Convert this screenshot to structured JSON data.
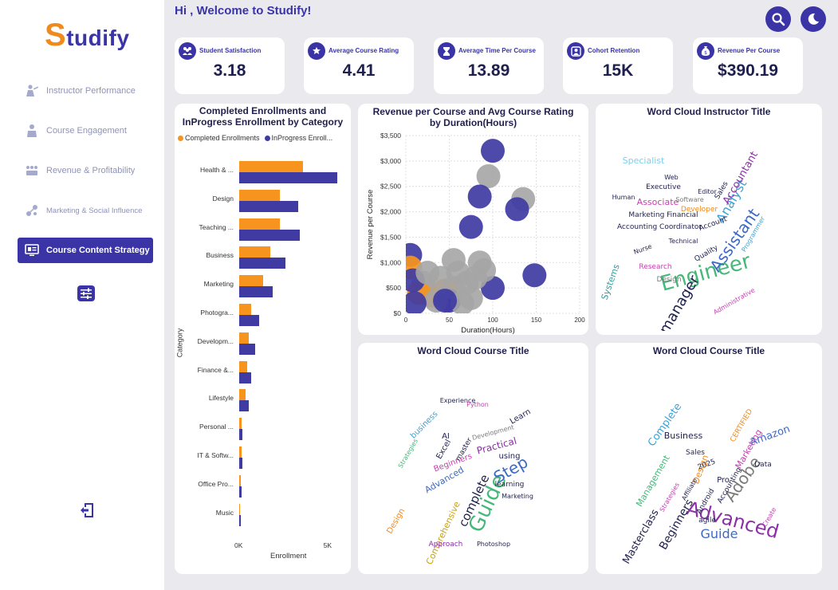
{
  "header": {
    "welcome": "Hi , Welcome to Studify!"
  },
  "logo": {
    "first": "S",
    "rest": "tudify"
  },
  "sidebar": {
    "items": [
      {
        "label": "Instructor Performance",
        "icon": "instructor-icon",
        "active": false
      },
      {
        "label": "Course Engagement",
        "icon": "engagement-icon",
        "active": false
      },
      {
        "label": "Revenue & Profitability",
        "icon": "revenue-icon",
        "active": false
      },
      {
        "label": "Marketing & Social Influence",
        "icon": "marketing-icon",
        "active": false
      },
      {
        "label": "Course Content Strategy",
        "icon": "monitor-icon",
        "active": true
      }
    ]
  },
  "kpis": [
    {
      "label": "Student Satisfaction",
      "value": "3.18",
      "icon": "users-icon"
    },
    {
      "label": "Average Course Rating",
      "value": "4.41",
      "icon": "rating-icon"
    },
    {
      "label": "Average Time Per Course",
      "value": "13.89",
      "icon": "hourglass-icon"
    },
    {
      "label": "Cohort Retention",
      "value": "15K",
      "icon": "cohort-icon"
    },
    {
      "label": "Revenue Per Course",
      "value": "$390.19",
      "icon": "money-bag-icon"
    }
  ],
  "colors": {
    "accent": "#3a34a6",
    "orange": "#f7941d",
    "indigo": "#3f3ba3",
    "grey": "#a5a5a5"
  },
  "chart_data": [
    {
      "type": "bar",
      "title": "Completed Enrollments and InProgress Enrollment by Category",
      "xlabel": "Enrollment",
      "ylabel": "Category",
      "orientation": "horizontal",
      "legend": "top",
      "legend_labels": [
        "Completed Enrollments",
        "InProgress Enroll..."
      ],
      "categories": [
        "Health & ...",
        "Design",
        "Teaching ...",
        "Business",
        "Marketing",
        "Photogra...",
        "Developm...",
        "Finance &...",
        "Lifestyle",
        "Personal ...",
        "IT & Softw...",
        "Office Pro...",
        "Music"
      ],
      "series": [
        {
          "name": "Completed Enrollments",
          "values": [
            3600,
            2300,
            2300,
            1750,
            1350,
            650,
            550,
            450,
            350,
            150,
            130,
            100,
            50
          ]
        },
        {
          "name": "InProgress Enrollments",
          "values": [
            5500,
            3300,
            3400,
            2600,
            1900,
            1100,
            900,
            650,
            550,
            200,
            180,
            150,
            80
          ]
        }
      ],
      "xticks": [
        "0K",
        "5K"
      ],
      "xlim": [
        0,
        6000
      ]
    },
    {
      "type": "scatter",
      "title": "Revenue per Course and Avg Course Rating by Duration(Hours)",
      "xlabel": "Duration(Hours)",
      "ylabel": "Revenue per Course",
      "xlim": [
        0,
        200
      ],
      "ylim": [
        0,
        3500
      ],
      "xticks": [
        "0",
        "50",
        "100",
        "150",
        "200"
      ],
      "yticks": [
        "$0",
        "$500",
        "$1,000",
        "$1,500",
        "$2,000",
        "$2,500",
        "$3,000",
        "$3,500"
      ],
      "points": [
        {
          "x": 100,
          "y": 3200,
          "c": "indigo"
        },
        {
          "x": 95,
          "y": 2700,
          "c": "grey"
        },
        {
          "x": 135,
          "y": 2250,
          "c": "grey"
        },
        {
          "x": 85,
          "y": 2300,
          "c": "indigo"
        },
        {
          "x": 128,
          "y": 2050,
          "c": "indigo"
        },
        {
          "x": 75,
          "y": 1700,
          "c": "indigo"
        },
        {
          "x": 148,
          "y": 750,
          "c": "indigo"
        },
        {
          "x": 100,
          "y": 500,
          "c": "indigo"
        },
        {
          "x": 85,
          "y": 1000,
          "c": "grey"
        },
        {
          "x": 90,
          "y": 850,
          "c": "grey"
        },
        {
          "x": 55,
          "y": 1050,
          "c": "grey"
        },
        {
          "x": 60,
          "y": 800,
          "c": "grey"
        },
        {
          "x": 70,
          "y": 600,
          "c": "grey"
        },
        {
          "x": 45,
          "y": 450,
          "c": "orange"
        },
        {
          "x": 30,
          "y": 350,
          "c": "orange"
        },
        {
          "x": 20,
          "y": 600,
          "c": "grey"
        },
        {
          "x": 15,
          "y": 400,
          "c": "orange"
        },
        {
          "x": 5,
          "y": 1150,
          "c": "indigo"
        },
        {
          "x": 5,
          "y": 900,
          "c": "orange"
        },
        {
          "x": 8,
          "y": 650,
          "c": "indigo"
        },
        {
          "x": 40,
          "y": 700,
          "c": "grey"
        },
        {
          "x": 50,
          "y": 250,
          "c": "indigo"
        },
        {
          "x": 65,
          "y": 200,
          "c": "grey"
        },
        {
          "x": 35,
          "y": 250,
          "c": "grey"
        },
        {
          "x": 75,
          "y": 300,
          "c": "grey"
        },
        {
          "x": 10,
          "y": 200,
          "c": "indigo"
        },
        {
          "x": 55,
          "y": 500,
          "c": "grey"
        },
        {
          "x": 25,
          "y": 800,
          "c": "grey"
        },
        {
          "x": 45,
          "y": 250,
          "c": "indigo"
        },
        {
          "x": 80,
          "y": 700,
          "c": "grey"
        }
      ]
    }
  ],
  "wordclouds": {
    "instructor": {
      "title": "Word Cloud Instructor Title",
      "words": [
        {
          "t": "Engineer",
          "x": 140,
          "y": 195,
          "s": 26,
          "r": -15,
          "c": "#46b879"
        },
        {
          "t": "Assistant",
          "x": 180,
          "y": 150,
          "s": 20,
          "r": -55,
          "c": "#3d69c6"
        },
        {
          "t": "manager",
          "x": 110,
          "y": 230,
          "s": 18,
          "r": -60,
          "c": "#1f1f4d"
        },
        {
          "t": "Analyst",
          "x": 175,
          "y": 100,
          "s": 16,
          "r": -60,
          "c": "#3aa3d8"
        },
        {
          "t": "Accountant",
          "x": 185,
          "y": 70,
          "s": 13,
          "r": -60,
          "c": "#8a2fa6"
        },
        {
          "t": "Specialist",
          "x": 60,
          "y": 50,
          "s": 11,
          "r": 0,
          "c": "#7bd0f0"
        },
        {
          "t": "Associate",
          "x": 78,
          "y": 102,
          "s": 11,
          "r": 0,
          "c": "#c53fb0"
        },
        {
          "t": "Marketing Financial",
          "x": 85,
          "y": 117,
          "s": 9,
          "r": 0,
          "c": "#1f1f4d"
        },
        {
          "t": "Accounting Coordinator",
          "x": 80,
          "y": 132,
          "s": 9,
          "r": 0,
          "c": "#1f1f4d"
        },
        {
          "t": "Executive",
          "x": 85,
          "y": 82,
          "s": 9,
          "r": 0,
          "c": "#1f1f4d"
        },
        {
          "t": "Systems",
          "x": 22,
          "y": 200,
          "s": 11,
          "r": -70,
          "c": "#2ea0a0"
        },
        {
          "t": "Developer",
          "x": 130,
          "y": 110,
          "s": 9,
          "r": 0,
          "c": "#f08a1f"
        },
        {
          "t": "Research",
          "x": 75,
          "y": 182,
          "s": 9,
          "r": 0,
          "c": "#c53fb0"
        },
        {
          "t": "Quality",
          "x": 140,
          "y": 165,
          "s": 9,
          "r": -30,
          "c": "#1f1f4d"
        },
        {
          "t": "Design",
          "x": 92,
          "y": 198,
          "s": 9,
          "r": 0,
          "c": "#7a7a7a"
        },
        {
          "t": "Software",
          "x": 118,
          "y": 98,
          "s": 8,
          "r": 0,
          "c": "#7a7a7a"
        },
        {
          "t": "Account",
          "x": 148,
          "y": 128,
          "s": 9,
          "r": -20,
          "c": "#1f1f4d"
        },
        {
          "t": "Administrative",
          "x": 175,
          "y": 225,
          "s": 8,
          "r": -30,
          "c": "#c53fb0"
        },
        {
          "t": "Sales",
          "x": 160,
          "y": 85,
          "s": 9,
          "r": -60,
          "c": "#1f1f4d"
        },
        {
          "t": "Human",
          "x": 35,
          "y": 95,
          "s": 8,
          "r": 0,
          "c": "#1f1f4d"
        },
        {
          "t": "Technical",
          "x": 110,
          "y": 150,
          "s": 8,
          "r": 0,
          "c": "#1f1f4d"
        },
        {
          "t": "Nurse",
          "x": 60,
          "y": 160,
          "s": 8,
          "r": -20,
          "c": "#1f1f4d"
        },
        {
          "t": "Programmer",
          "x": 200,
          "y": 140,
          "s": 8,
          "r": -60,
          "c": "#3aa3d8"
        },
        {
          "t": "Editor",
          "x": 140,
          "y": 88,
          "s": 8,
          "r": 0,
          "c": "#1f1f4d"
        },
        {
          "t": "Web",
          "x": 95,
          "y": 70,
          "s": 8,
          "r": 0,
          "c": "#1f1f4d"
        }
      ]
    },
    "course1": {
      "title": "Word Cloud Course Title",
      "words": [
        {
          "t": "Guide",
          "x": 170,
          "y": 180,
          "s": 26,
          "r": -65,
          "c": "#46b879"
        },
        {
          "t": "Step",
          "x": 195,
          "y": 140,
          "s": 20,
          "r": -30,
          "c": "#3d69c6"
        },
        {
          "t": "complete",
          "x": 150,
          "y": 175,
          "s": 15,
          "r": -65,
          "c": "#1f1f4d"
        },
        {
          "t": "Comprehensive",
          "x": 110,
          "y": 215,
          "s": 11,
          "r": -65,
          "c": "#c7a316"
        },
        {
          "t": "Practical",
          "x": 175,
          "y": 108,
          "s": 12,
          "r": -15,
          "c": "#8a2fa6"
        },
        {
          "t": "Beginners",
          "x": 120,
          "y": 128,
          "s": 10,
          "r": -20,
          "c": "#c53fb0"
        },
        {
          "t": "business",
          "x": 85,
          "y": 80,
          "s": 10,
          "r": -45,
          "c": "#3aa3d8"
        },
        {
          "t": "Advanced",
          "x": 110,
          "y": 150,
          "s": 11,
          "r": -30,
          "c": "#3d69c6"
        },
        {
          "t": "Learn",
          "x": 205,
          "y": 70,
          "s": 10,
          "r": -30,
          "c": "#1f1f4d"
        },
        {
          "t": "using",
          "x": 190,
          "y": 120,
          "s": 10,
          "r": 0,
          "c": "#1f1f4d"
        },
        {
          "t": "Design",
          "x": 50,
          "y": 200,
          "s": 10,
          "r": -60,
          "c": "#f08a1f"
        },
        {
          "t": "Excel",
          "x": 110,
          "y": 110,
          "s": 10,
          "r": -60,
          "c": "#1f1f4d"
        },
        {
          "t": "master",
          "x": 135,
          "y": 110,
          "s": 9,
          "r": -60,
          "c": "#1f1f4d"
        },
        {
          "t": "Approach",
          "x": 110,
          "y": 230,
          "s": 9,
          "r": 0,
          "c": "#8a2fa6"
        },
        {
          "t": "Development",
          "x": 170,
          "y": 90,
          "s": 8,
          "r": -15,
          "c": "#7a7a7a"
        },
        {
          "t": "Experience",
          "x": 125,
          "y": 50,
          "s": 8,
          "r": 0,
          "c": "#1f1f4d"
        },
        {
          "t": "learning",
          "x": 190,
          "y": 155,
          "s": 9,
          "r": 0,
          "c": "#1f1f4d"
        },
        {
          "t": "Strategies",
          "x": 65,
          "y": 115,
          "s": 8,
          "r": -60,
          "c": "#46b879"
        },
        {
          "t": "Marketing",
          "x": 200,
          "y": 170,
          "s": 8,
          "r": 0,
          "c": "#1f1f4d"
        },
        {
          "t": "Python",
          "x": 150,
          "y": 55,
          "s": 8,
          "r": 0,
          "c": "#c53fb0"
        },
        {
          "t": "Photoshop",
          "x": 170,
          "y": 230,
          "s": 8,
          "r": 0,
          "c": "#1f1f4d"
        },
        {
          "t": "AI",
          "x": 110,
          "y": 95,
          "s": 10,
          "r": 0,
          "c": "#1f1f4d"
        }
      ]
    },
    "course2": {
      "title": "Word Cloud Course Title",
      "words": [
        {
          "t": "Advanced",
          "x": 170,
          "y": 205,
          "s": 24,
          "r": 15,
          "c": "#8a2fa6"
        },
        {
          "t": "Adobe",
          "x": 190,
          "y": 150,
          "s": 20,
          "r": -55,
          "c": "#7a7a7a"
        },
        {
          "t": "Guide",
          "x": 155,
          "y": 220,
          "s": 16,
          "r": 0,
          "c": "#3d69c6"
        },
        {
          "t": "Beginners",
          "x": 105,
          "y": 205,
          "s": 14,
          "r": -60,
          "c": "#1f1f4d"
        },
        {
          "t": "Masterclass",
          "x": 60,
          "y": 220,
          "s": 13,
          "r": -60,
          "c": "#1f1f4d"
        },
        {
          "t": "Amazon",
          "x": 220,
          "y": 95,
          "s": 13,
          "r": -20,
          "c": "#3d69c6"
        },
        {
          "t": "Complete",
          "x": 90,
          "y": 80,
          "s": 13,
          "r": -55,
          "c": "#3aa3d8"
        },
        {
          "t": "Management",
          "x": 75,
          "y": 150,
          "s": 11,
          "r": -60,
          "c": "#46b879"
        },
        {
          "t": "Marketing",
          "x": 195,
          "y": 110,
          "s": 11,
          "r": -60,
          "c": "#c53fb0"
        },
        {
          "t": "Business",
          "x": 110,
          "y": 95,
          "s": 11,
          "r": 0,
          "c": "#1f1f4d"
        },
        {
          "t": "Design",
          "x": 135,
          "y": 135,
          "s": 11,
          "r": -70,
          "c": "#f08a1f"
        },
        {
          "t": "Accounting",
          "x": 170,
          "y": 155,
          "s": 9,
          "r": -60,
          "c": "#1f1f4d"
        },
        {
          "t": "Android",
          "x": 140,
          "y": 175,
          "s": 9,
          "r": -60,
          "c": "#1f1f4d"
        },
        {
          "t": "2025",
          "x": 140,
          "y": 130,
          "s": 9,
          "r": -20,
          "c": "#1f1f4d"
        },
        {
          "t": "Pro",
          "x": 160,
          "y": 150,
          "s": 10,
          "r": 0,
          "c": "#1f1f4d"
        },
        {
          "t": "agile",
          "x": 140,
          "y": 200,
          "s": 9,
          "r": 0,
          "c": "#1f1f4d"
        },
        {
          "t": "Data",
          "x": 210,
          "y": 130,
          "s": 9,
          "r": 0,
          "c": "#1f1f4d"
        },
        {
          "t": "CERTIFIED",
          "x": 185,
          "y": 80,
          "s": 9,
          "r": -60,
          "c": "#f08a1f"
        },
        {
          "t": "Strategies",
          "x": 95,
          "y": 170,
          "s": 8,
          "r": -60,
          "c": "#c53fb0"
        },
        {
          "t": "Affiliate",
          "x": 120,
          "y": 160,
          "s": 8,
          "r": -60,
          "c": "#1f1f4d"
        },
        {
          "t": "Sales",
          "x": 125,
          "y": 115,
          "s": 9,
          "r": 0,
          "c": "#1f1f4d"
        },
        {
          "t": "Create",
          "x": 220,
          "y": 195,
          "s": 8,
          "r": -60,
          "c": "#c53fb0"
        }
      ]
    }
  }
}
